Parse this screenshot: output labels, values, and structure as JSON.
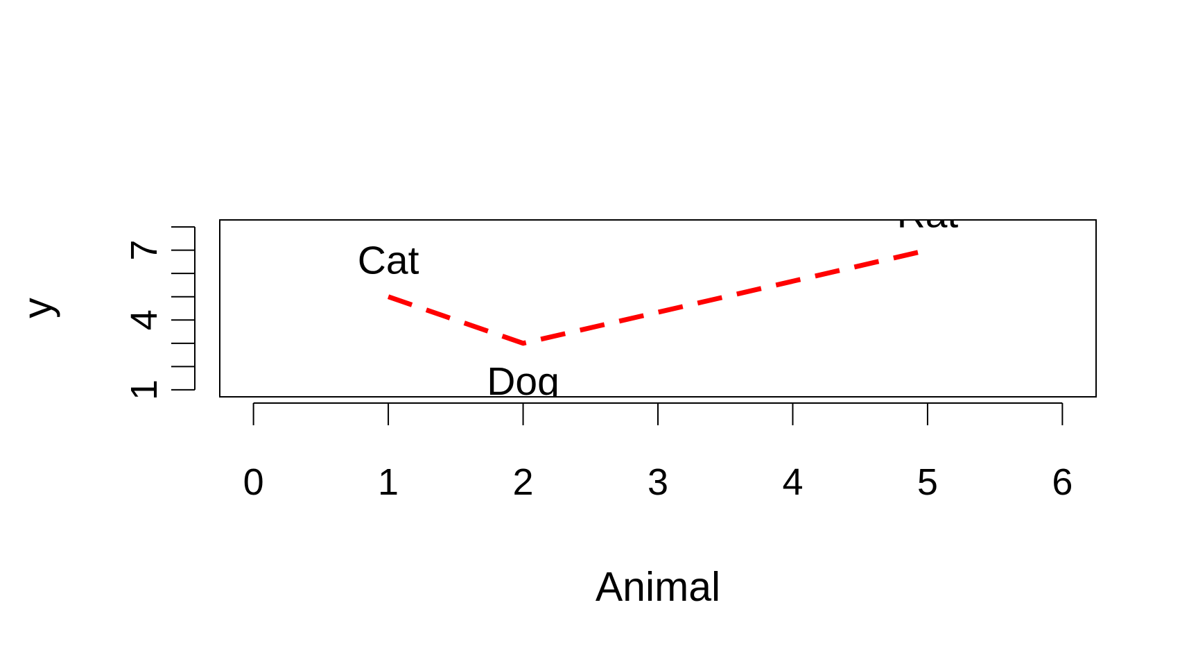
{
  "chart_data": {
    "type": "line",
    "title": "",
    "xlabel": "Animal",
    "ylabel": "y",
    "xlim": [
      -0.25,
      6.25
    ],
    "ylim": [
      0.7,
      8.3
    ],
    "x_ticks": [
      0,
      1,
      2,
      3,
      4,
      5,
      6
    ],
    "y_ticks": [
      1,
      2,
      3,
      4,
      5,
      6,
      7,
      8
    ],
    "y_tick_labels": [
      {
        "value": 1,
        "label": "1"
      },
      {
        "value": 4,
        "label": "4"
      },
      {
        "value": 7,
        "label": "7"
      }
    ],
    "grid": false,
    "line_color": "#ff0000",
    "line_style": "dashed",
    "series": [
      {
        "x": [
          1,
          2,
          5
        ],
        "values": [
          5,
          3,
          7
        ]
      }
    ],
    "point_labels": [
      {
        "x": 1,
        "y": 5,
        "text": "Cat",
        "position": "above"
      },
      {
        "x": 2,
        "y": 3,
        "text": "Dog",
        "position": "below"
      },
      {
        "x": 5,
        "y": 7,
        "text": "Rat",
        "position": "above"
      }
    ]
  }
}
